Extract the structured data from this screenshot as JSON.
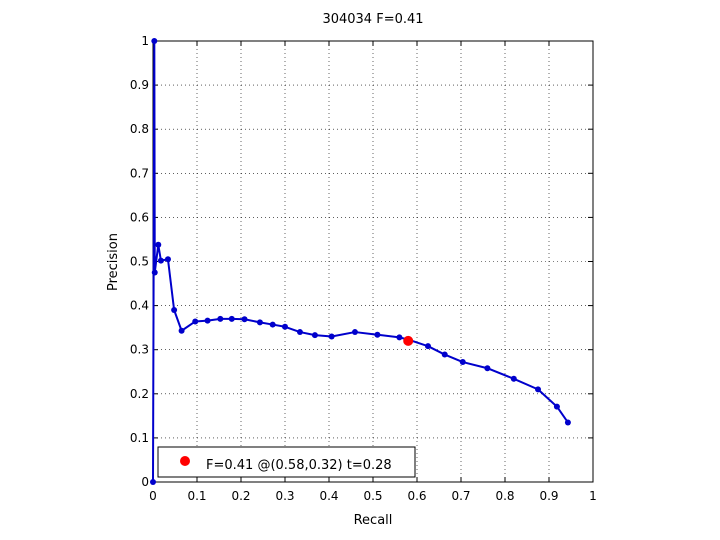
{
  "chart_data": {
    "type": "line",
    "title": "304034 F=0.41",
    "xlabel": "Recall",
    "ylabel": "Precision",
    "xlim": [
      0,
      1
    ],
    "ylim": [
      0,
      1
    ],
    "grid": true,
    "x_ticks": [
      "0",
      "0.1",
      "0.2",
      "0.3",
      "0.4",
      "0.5",
      "0.6",
      "0.7",
      "0.8",
      "0.9",
      "1"
    ],
    "y_ticks": [
      "0",
      "0.1",
      "0.2",
      "0.3",
      "0.4",
      "0.5",
      "0.6",
      "0.7",
      "0.8",
      "0.9",
      "1"
    ],
    "series": [
      {
        "color": "#0000cc",
        "points": [
          [
            0.0,
            0.0
          ],
          [
            0.003,
            1.0
          ],
          [
            0.004,
            0.475
          ],
          [
            0.012,
            0.538
          ],
          [
            0.018,
            0.502
          ],
          [
            0.034,
            0.505
          ],
          [
            0.048,
            0.39
          ],
          [
            0.065,
            0.343
          ],
          [
            0.096,
            0.364
          ],
          [
            0.124,
            0.366
          ],
          [
            0.153,
            0.37
          ],
          [
            0.179,
            0.37
          ],
          [
            0.208,
            0.369
          ],
          [
            0.243,
            0.362
          ],
          [
            0.272,
            0.357
          ],
          [
            0.3,
            0.352
          ],
          [
            0.334,
            0.34
          ],
          [
            0.368,
            0.333
          ],
          [
            0.406,
            0.33
          ],
          [
            0.459,
            0.34
          ],
          [
            0.51,
            0.334
          ],
          [
            0.56,
            0.328
          ],
          [
            0.58,
            0.323
          ],
          [
            0.625,
            0.308
          ],
          [
            0.663,
            0.289
          ],
          [
            0.704,
            0.272
          ],
          [
            0.76,
            0.258
          ],
          [
            0.82,
            0.234
          ],
          [
            0.875,
            0.21
          ],
          [
            0.918,
            0.171
          ],
          [
            0.943,
            0.135
          ]
        ]
      }
    ],
    "highlight": {
      "x": 0.58,
      "y": 0.32,
      "color": "#ff0000"
    },
    "legend": {
      "label": "F=0.41 @(0.58,0.32) t=0.28",
      "placement": "bottom-left"
    }
  }
}
